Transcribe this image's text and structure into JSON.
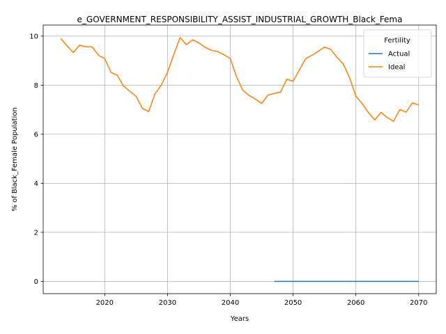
{
  "chart_data": {
    "type": "line",
    "title": "e_GOVERNMENT_RESPONSIBILITY_ASSIST_INDUSTRIAL_GROWTH_Black_Fema",
    "xlabel": "Years",
    "ylabel": "% of Black_Female Population",
    "xlim": [
      2010.2,
      2072.8
    ],
    "ylim": [
      -0.5,
      10.45
    ],
    "xticks": [
      2020,
      2030,
      2040,
      2050,
      2060,
      2070
    ],
    "yticks": [
      0,
      2,
      4,
      6,
      8,
      10
    ],
    "grid": true,
    "legend": {
      "title": "Fertility",
      "position": "top-right"
    },
    "series": [
      {
        "name": "Actual",
        "color": "#1f77b4",
        "x": [
          2047,
          2048,
          2049,
          2050,
          2051,
          2052,
          2053,
          2054,
          2055,
          2056,
          2057,
          2058,
          2059,
          2060,
          2061,
          2062,
          2063,
          2064,
          2065,
          2066,
          2067,
          2068,
          2069,
          2070
        ],
        "y": [
          0,
          0,
          0,
          0,
          0,
          0,
          0,
          0,
          0,
          0,
          0,
          0,
          0,
          0,
          0,
          0,
          0,
          0,
          0,
          0,
          0,
          0,
          0,
          0
        ]
      },
      {
        "name": "Ideal",
        "color": "#ff7f0e",
        "x": [
          2013,
          2014,
          2015,
          2016,
          2017,
          2018,
          2019,
          2020,
          2021,
          2022,
          2023,
          2024,
          2025,
          2026,
          2027,
          2028,
          2029,
          2030,
          2031,
          2032,
          2033,
          2034,
          2035,
          2036,
          2037,
          2038,
          2039,
          2040,
          2041,
          2042,
          2043,
          2044,
          2045,
          2046,
          2047,
          2048,
          2049,
          2050,
          2051,
          2052,
          2053,
          2054,
          2055,
          2056,
          2057,
          2058,
          2059,
          2060,
          2061,
          2062,
          2063,
          2064,
          2065,
          2066,
          2067,
          2068,
          2069,
          2070
        ],
        "y": [
          9.9,
          9.6,
          9.33,
          9.63,
          9.56,
          9.56,
          9.22,
          9.08,
          8.52,
          8.4,
          7.96,
          7.75,
          7.54,
          7.05,
          6.92,
          7.65,
          8.0,
          8.52,
          9.25,
          9.94,
          9.65,
          9.85,
          9.72,
          9.54,
          9.42,
          9.37,
          9.24,
          9.08,
          8.33,
          7.79,
          7.58,
          7.43,
          7.25,
          7.6,
          7.66,
          7.72,
          8.24,
          8.16,
          8.62,
          9.08,
          9.22,
          9.38,
          9.55,
          9.46,
          9.13,
          8.86,
          8.3,
          7.55,
          7.25,
          6.88,
          6.58,
          6.89,
          6.68,
          6.53,
          7.0,
          6.9,
          7.28,
          7.19
        ]
      }
    ]
  }
}
